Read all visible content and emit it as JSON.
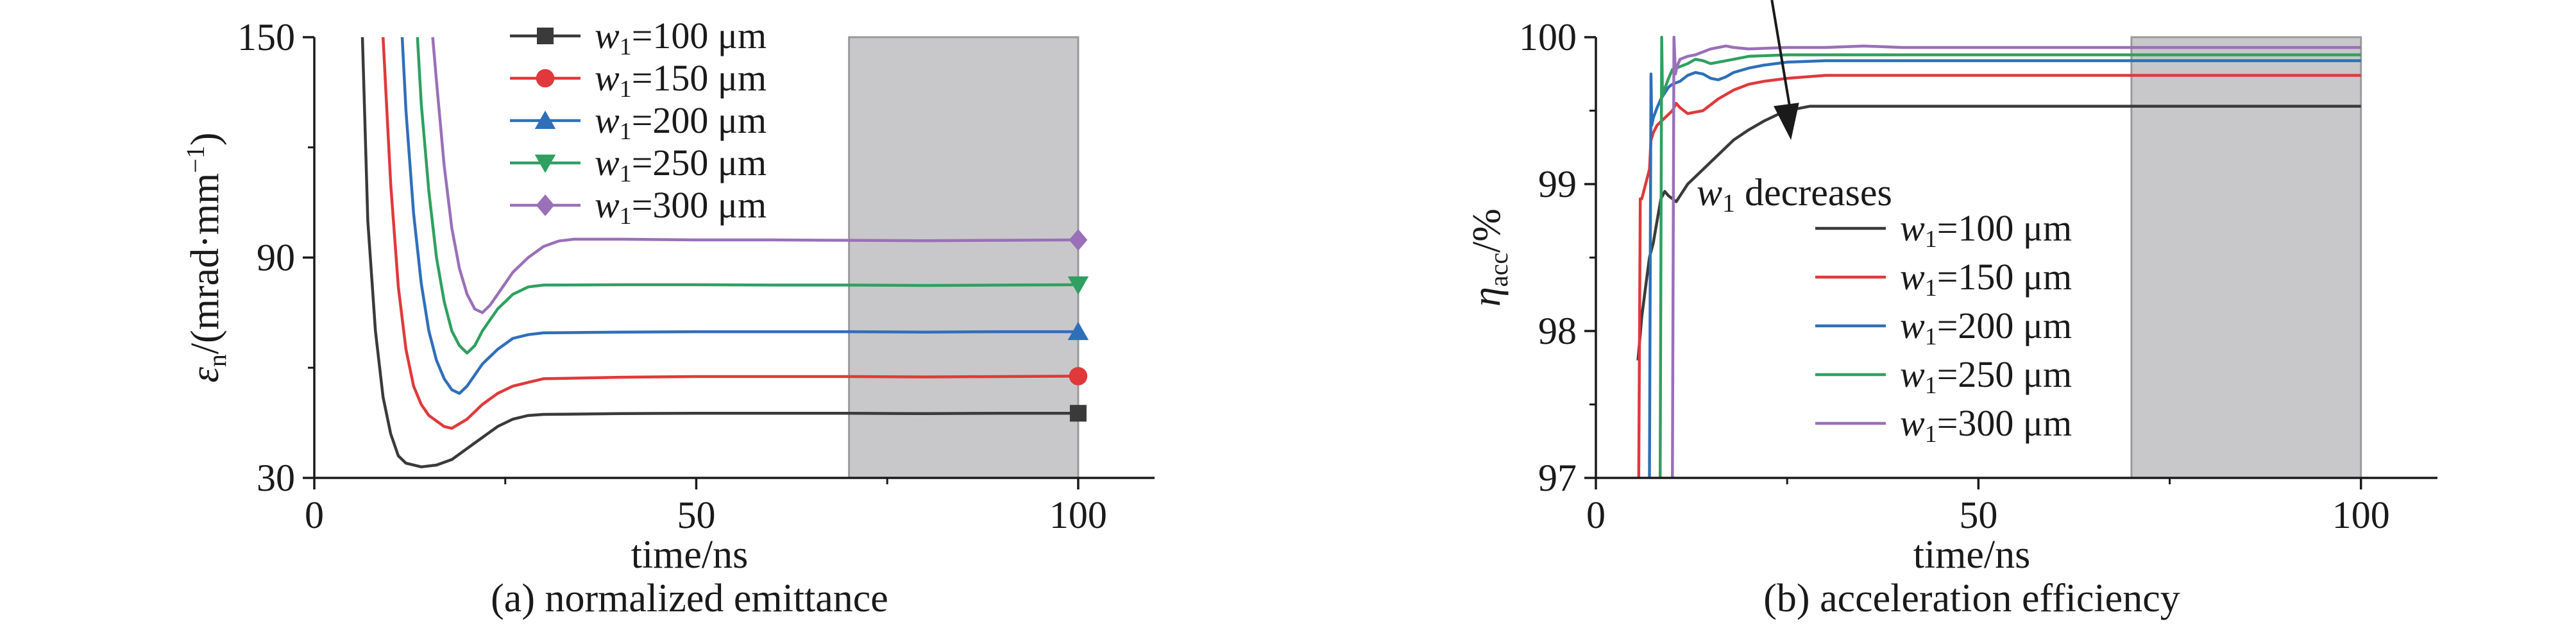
{
  "chart_data": [
    {
      "type": "line",
      "caption": "(a) normalized emittance",
      "xlabel": "time/ns",
      "ylabel_symbol": "ε",
      "ylabel_sub": "n",
      "ylabel_unit": "/(mrad·mm",
      "ylabel_sup": "−1",
      "ylabel_close": ")",
      "xlim": [
        0,
        110
      ],
      "ylim": [
        30,
        150
      ],
      "xticks": [
        0,
        50,
        100
      ],
      "yticks": [
        30,
        90,
        150
      ],
      "shaded_region": {
        "x": [
          70,
          100
        ],
        "color": "#c8c8ca"
      },
      "legend": {
        "position": "top-left"
      },
      "series": [
        {
          "name": "=100 μm",
          "name_var": "w",
          "name_sub": "1",
          "color": "#3a3a3a",
          "marker": "square",
          "x": [
            6.3,
            7,
            8,
            9,
            10,
            11,
            12,
            14,
            16,
            18,
            20,
            22,
            24,
            26,
            28,
            30,
            40,
            50,
            60,
            70,
            80,
            90,
            100
          ],
          "y": [
            150,
            100,
            70,
            52,
            42,
            36,
            34,
            33,
            33.5,
            35,
            38,
            41,
            44,
            46,
            47,
            47.3,
            47.5,
            47.6,
            47.6,
            47.6,
            47.5,
            47.6,
            47.6
          ]
        },
        {
          "name": "=150 μm",
          "name_var": "w",
          "name_sub": "1",
          "color": "#e0393b",
          "marker": "circle",
          "x": [
            9.0,
            10,
            11,
            12,
            13,
            14,
            15,
            16,
            17,
            18,
            20,
            22,
            24,
            26,
            28,
            30,
            40,
            50,
            60,
            70,
            80,
            90,
            100
          ],
          "y": [
            150,
            110,
            82,
            65,
            55,
            50,
            47,
            45.5,
            44,
            43.5,
            46,
            50,
            53,
            55,
            56,
            57,
            57.4,
            57.6,
            57.6,
            57.6,
            57.5,
            57.6,
            57.7
          ]
        },
        {
          "name": "=200 μm",
          "name_var": "w",
          "name_sub": "1",
          "color": "#2f6fba",
          "marker": "triangle-up",
          "x": [
            11.5,
            12,
            13,
            14,
            15,
            16,
            17,
            18,
            19,
            20,
            22,
            24,
            26,
            28,
            30,
            40,
            50,
            60,
            70,
            80,
            90,
            100
          ],
          "y": [
            150,
            130,
            102,
            83,
            70,
            62,
            57,
            54,
            53,
            55,
            61,
            65,
            68,
            69,
            69.5,
            69.7,
            69.8,
            69.8,
            69.8,
            69.7,
            69.8,
            69.8
          ]
        },
        {
          "name": "=250 μm",
          "name_var": "w",
          "name_sub": "1",
          "color": "#2fa060",
          "marker": "triangle-down",
          "x": [
            13.5,
            14,
            15,
            16,
            17,
            18,
            19,
            20,
            21,
            22,
            24,
            26,
            28,
            30,
            40,
            50,
            60,
            70,
            80,
            90,
            100
          ],
          "y": [
            150,
            132,
            108,
            90,
            78,
            70,
            66,
            64,
            66,
            70,
            76,
            80,
            82,
            82.5,
            82.6,
            82.6,
            82.5,
            82.5,
            82.4,
            82.5,
            82.6
          ]
        },
        {
          "name": "=300 μm",
          "name_var": "w",
          "name_sub": "1",
          "color": "#9a70b8",
          "marker": "diamond",
          "x": [
            15.5,
            16,
            17,
            18,
            19,
            20,
            21,
            22,
            23,
            24,
            26,
            28,
            30,
            32,
            34,
            40,
            50,
            60,
            70,
            80,
            90,
            100
          ],
          "y": [
            150,
            138,
            115,
            98,
            87,
            80,
            76,
            75,
            77,
            80,
            86,
            90,
            93,
            94.5,
            95,
            95,
            94.8,
            94.8,
            94.7,
            94.6,
            94.7,
            94.8
          ]
        }
      ]
    },
    {
      "type": "line",
      "caption": "(b) acceleration efficiency",
      "xlabel": "time/ns",
      "ylabel_symbol": "η",
      "ylabel_sub": "acc",
      "ylabel_unit": "/%",
      "xlim": [
        0,
        110
      ],
      "ylim": [
        97,
        100
      ],
      "xticks": [
        0,
        50,
        100
      ],
      "yticks": [
        97,
        98,
        99,
        100
      ],
      "shaded_region": {
        "x": [
          70,
          100
        ],
        "color": "#c8c8ca"
      },
      "legend": {
        "position": "bottom-right"
      },
      "annotation": {
        "var": "w",
        "sub": "1",
        "text": " decreases",
        "arrow_from": [
          23,
          100.3
        ],
        "arrow_to": [
          25.5,
          99.3
        ]
      },
      "series": [
        {
          "name": "=100 μm",
          "name_var": "w",
          "name_sub": "1",
          "color": "#3a3a3a",
          "x": [
            5.5,
            6,
            6.5,
            7,
            7.5,
            8,
            8.5,
            9,
            9.5,
            10,
            10.5,
            11,
            12,
            14,
            16,
            18,
            20,
            22,
            24,
            26,
            28,
            30,
            40,
            50,
            60,
            70,
            80,
            90,
            100
          ],
          "y": [
            97.8,
            98.1,
            98.3,
            98.5,
            98.6,
            98.75,
            98.9,
            98.95,
            98.92,
            98.9,
            98.88,
            98.92,
            99.0,
            99.1,
            99.2,
            99.3,
            99.37,
            99.43,
            99.48,
            99.51,
            99.53,
            99.53,
            99.53,
            99.53,
            99.53,
            99.53,
            99.53,
            99.53,
            99.53
          ]
        },
        {
          "name": "=150 μm",
          "name_var": "w",
          "name_sub": "1",
          "color": "#e0393b",
          "x": [
            5.6,
            5.8,
            6,
            6.5,
            7,
            7.2,
            7.5,
            8,
            9,
            10,
            10.5,
            11,
            12,
            14,
            16,
            18,
            20,
            22,
            25,
            30,
            40,
            50,
            60,
            70,
            80,
            90,
            100
          ],
          "y": [
            97.0,
            98.9,
            98.9,
            99.0,
            99.1,
            99.3,
            99.35,
            99.4,
            99.45,
            99.5,
            99.55,
            99.52,
            99.48,
            99.5,
            99.58,
            99.64,
            99.68,
            99.7,
            99.72,
            99.74,
            99.74,
            99.74,
            99.74,
            99.74,
            99.74,
            99.74,
            99.74
          ]
        },
        {
          "name": "=200 μm",
          "name_var": "w",
          "name_sub": "1",
          "color": "#2f6fba",
          "x": [
            7.0,
            7.2,
            7.3,
            7.5,
            8,
            8.5,
            9,
            9.5,
            10,
            11,
            12,
            13,
            14,
            15,
            16,
            17,
            18,
            20,
            22,
            25,
            30,
            40,
            50,
            60,
            70,
            80,
            90,
            100
          ],
          "y": [
            97.0,
            99.75,
            99.4,
            99.45,
            99.52,
            99.58,
            99.62,
            99.66,
            99.68,
            99.7,
            99.74,
            99.76,
            99.75,
            99.72,
            99.71,
            99.73,
            99.76,
            99.79,
            99.81,
            99.83,
            99.84,
            99.84,
            99.84,
            99.84,
            99.84,
            99.84,
            99.84,
            99.84
          ]
        },
        {
          "name": "=250 μm",
          "name_var": "w",
          "name_sub": "1",
          "color": "#2fa060",
          "x": [
            8.4,
            8.6,
            8.7,
            9,
            9.5,
            10,
            11,
            12,
            13,
            14,
            15,
            16,
            18,
            20,
            25,
            30,
            40,
            50,
            60,
            70,
            80,
            90,
            100
          ],
          "y": [
            97.0,
            100,
            99.6,
            99.65,
            99.72,
            99.78,
            99.8,
            99.82,
            99.85,
            99.84,
            99.82,
            99.83,
            99.85,
            99.87,
            99.88,
            99.88,
            99.88,
            99.88,
            99.88,
            99.88,
            99.88,
            99.88,
            99.88
          ]
        },
        {
          "name": "=300 μm",
          "name_var": "w",
          "name_sub": "1",
          "color": "#9a70b8",
          "x": [
            10.0,
            10.2,
            10.4,
            10.6,
            11,
            12,
            13,
            14,
            15,
            16,
            17,
            18,
            20,
            25,
            30,
            35,
            40,
            50,
            60,
            70,
            80,
            90,
            100
          ],
          "y": [
            97.0,
            100,
            99.75,
            99.8,
            99.85,
            99.87,
            99.88,
            99.9,
            99.92,
            99.93,
            99.94,
            99.93,
            99.92,
            99.93,
            99.93,
            99.94,
            99.93,
            99.93,
            99.93,
            99.93,
            99.93,
            99.93,
            99.93
          ]
        }
      ]
    }
  ]
}
